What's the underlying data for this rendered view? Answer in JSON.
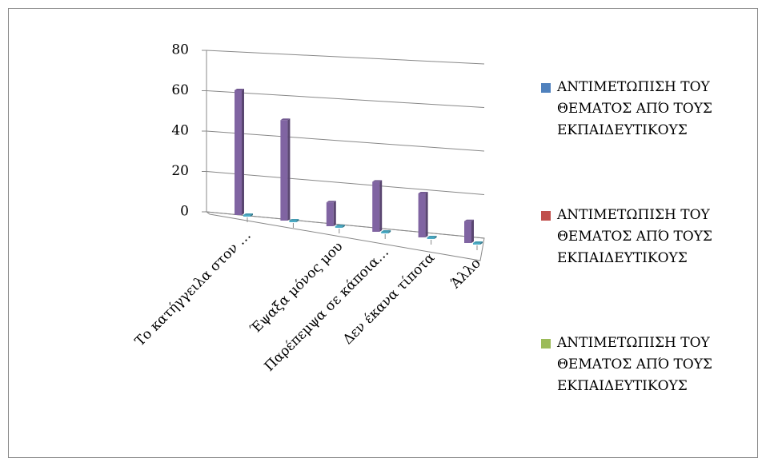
{
  "chart_data": {
    "type": "bar3d",
    "categories": [
      "Το κατήγγειλα στον …",
      null,
      "Έψαξα μόνος μου",
      "Παρέπεμψα σε κάποια…",
      "Δεν έκανα τίποτα",
      "Άλλο"
    ],
    "series": [
      {
        "color": "#8064a2",
        "values": [
          61,
          49,
          11,
          24,
          21,
          10
        ]
      },
      {
        "color": "#4bacc6",
        "values": [
          0,
          0,
          0,
          0,
          0,
          0
        ]
      }
    ],
    "legend": [
      {
        "name": "ΑΝΤΙΜΕΤΩΠΙΣΗ ΤΟΥ ΘΕΜΑΤΟΣ ΑΠΌ ΤΟΥΣ ΕΚΠΑΙΔΕΥΤΙΚΟΥΣ",
        "color": "#4f81bd"
      },
      {
        "name": "ΑΝΤΙΜΕΤΩΠΙΣΗ ΤΟΥ ΘΕΜΑΤΟΣ ΑΠΌ ΤΟΥΣ ΕΚΠΑΙΔΕΥΤΙΚΟΥΣ",
        "color": "#c0504d"
      },
      {
        "name": "ΑΝΤΙΜΕΤΩΠΙΣΗ ΤΟΥ ΘΕΜΑΤΟΣ ΑΠΌ ΤΟΥΣ ΕΚΠΑΙΔΕΥΤΙΚΟΥΣ",
        "color": "#9bbb59"
      }
    ],
    "ylim": [
      0,
      80
    ],
    "yticks": [
      0,
      20,
      40,
      60,
      80
    ],
    "grid": true,
    "legend_position": "right"
  }
}
